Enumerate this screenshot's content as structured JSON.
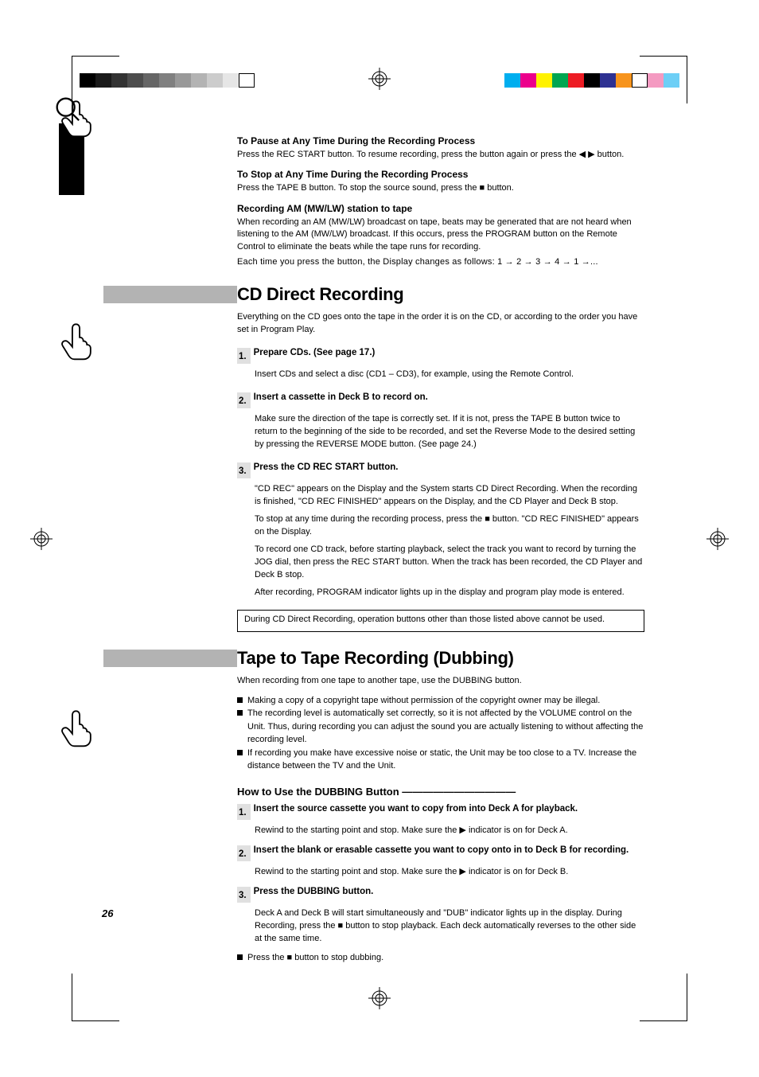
{
  "pageNumber": "26",
  "printMarks": {
    "gray_ramp": [
      "#000000",
      "#1a1a1a",
      "#333333",
      "#4d4d4d",
      "#666666",
      "#808080",
      "#999999",
      "#b3b3b3",
      "#cccccc",
      "#e6e6e6",
      "#ffffff"
    ],
    "color_bar": [
      "#00aeef",
      "#ec008c",
      "#fff200",
      "#00a651",
      "#ed1c24",
      "#000000",
      "#2e3192",
      "#f7941d",
      "#ffffff",
      "#f49ac1",
      "#6dcff6"
    ]
  },
  "pause": {
    "heading": "To Pause at Any Time During the Recording Process",
    "body": "Press the REC START button. To resume recording, press the button again or press the ◀ ▶ button."
  },
  "stop": {
    "heading": "To Stop at Any Time During the Recording Process",
    "body": "Press the TAPE B button. To stop the source sound, press the ■ button."
  },
  "am": {
    "heading": "Recording AM (MW/LW) station to tape",
    "body1": "When recording an AM (MW/LW) broadcast on tape, beats may be generated that are not heard when listening to the AM (MW/LW) broadcast. If this occurs, press the PROGRAM button on the Remote Control to eliminate the beats while the tape runs for recording.",
    "body2": "Each time you press the button, the Display changes as follows: 1 → 2 → 3 → 4 → 1 →..."
  },
  "cdDirect": {
    "title": "CD Direct Recording",
    "intro": "Everything on the CD goes onto the tape in the order it is on the CD, or according to the order you have set in Program Play.",
    "step1_num": "1.",
    "step1_title": "Prepare CDs. (See page 17.)",
    "step1_body": "Insert CDs and select a disc (CD1 – CD3), for example, using the Remote Control.",
    "step2_num": "2.",
    "step2_title": "Insert a cassette in Deck B to record on.",
    "step2_body": "Make sure the direction of the tape is correctly set. If it is not, press the TAPE B button twice to return to the beginning of the side to be recorded, and set the Reverse Mode to the desired setting by pressing the REVERSE MODE button. (See page 24.)",
    "step3_num": "3.",
    "step3_title": "Press the CD REC START button.",
    "step3_body_p1": "\"CD REC\" appears on the Display and the System starts CD Direct Recording. When the recording is finished, \"CD REC FINISHED\" appears on the Display, and the CD Player and Deck B stop.",
    "step3_body_p2": "To stop at any time during the recording process, press the ■ button. \"CD REC FINISHED\" appears on the Display.",
    "step3_body_p3": "To record one CD track, before starting playback, select the track you want to record by turning the JOG dial, then press the REC START button. When the track has been recorded, the CD Player and Deck B stop.",
    "step3_body_p4": "After recording, PROGRAM indicator lights up in the display and program play mode is entered.",
    "note": "During CD Direct Recording, operation buttons other than those listed above cannot be used."
  },
  "dubbing": {
    "title": "Tape to Tape Recording (Dubbing)",
    "intro": "When recording from one tape to another tape, use the DUBBING button.",
    "bullet1": "Making a copy of a copyright tape without permission of the copyright owner may be illegal.",
    "bullet2": "The recording level is automatically set correctly, so it is not affected by the VOLUME control on the Unit. Thus, during recording you can adjust the sound you are actually listening to without affecting the recording level.",
    "bullet3": "If recording you make have excessive noise or static, the Unit may be too close to a TV. Increase the distance between the TV and the Unit.",
    "subHead": "How to Use the DUBBING Button ———————————",
    "step1_num": "1.",
    "step1_title": "Insert the source cassette you want to copy from into Deck A for playback.",
    "step1_body": "Rewind to the starting point and stop. Make sure the ▶ indicator is on for Deck A.",
    "step2_num": "2.",
    "step2_title": "Insert the blank or erasable cassette you want to copy onto in to Deck B for recording.",
    "step2_body": "Rewind to the starting point and stop. Make sure the ▶ indicator is on for Deck B.",
    "step3_num": "3.",
    "step3_title": "Press the DUBBING button.",
    "step3_body": "Deck A and Deck B will start simultaneously and \"DUB\" indicator lights up in the display. During Recording, press the ■ button to stop playback. Each deck automatically reverses to the other side at the same time.",
    "stopLine": "Press the ■ button to stop dubbing."
  }
}
